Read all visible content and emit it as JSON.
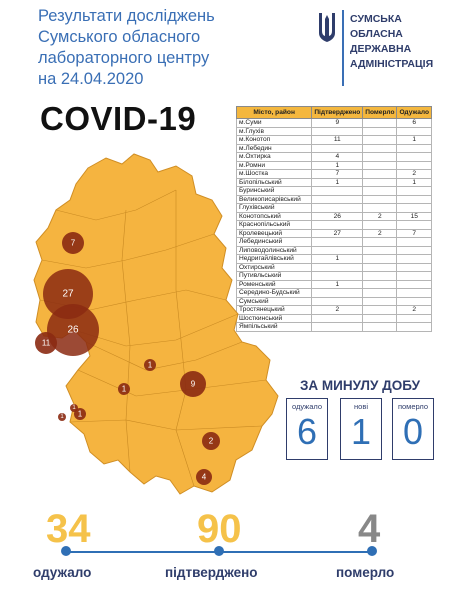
{
  "header": {
    "title_lines": [
      "Результати досліджень",
      "Сумського обласного",
      "лабораторного центру",
      "на 24.04.2020"
    ],
    "covid_label": "COVID-19"
  },
  "org": {
    "lines": [
      "СУМСЬКА",
      "ОБЛАСНА",
      "ДЕРЖАВНА",
      "АДМІНІСТРАЦІЯ"
    ]
  },
  "table": {
    "headers": [
      "Місто, район",
      "Підтверджено",
      "Померло",
      "Одужало"
    ],
    "rows": [
      [
        "м.Суми",
        "9",
        "",
        "6"
      ],
      [
        "м.Глухів",
        "",
        "",
        ""
      ],
      [
        "м.Конотоп",
        "11",
        "",
        "1"
      ],
      [
        "м.Лебедин",
        "",
        "",
        ""
      ],
      [
        "м.Охтирка",
        "4",
        "",
        ""
      ],
      [
        "м.Ромни",
        "1",
        "",
        ""
      ],
      [
        "м.Шостка",
        "7",
        "",
        "2"
      ],
      [
        "Білопільський",
        "1",
        "",
        "1"
      ],
      [
        "Буринський",
        "",
        "",
        ""
      ],
      [
        "Великописарівський",
        "",
        "",
        ""
      ],
      [
        "Глухівський",
        "",
        "",
        ""
      ],
      [
        "Конотопський",
        "26",
        "2",
        "15"
      ],
      [
        "Краснопільський",
        "",
        "",
        ""
      ],
      [
        "Кролевецький",
        "27",
        "2",
        "7"
      ],
      [
        "Лебединський",
        "",
        "",
        ""
      ],
      [
        "Липоводолинський",
        "",
        "",
        ""
      ],
      [
        "Недригайлівський",
        "1",
        "",
        ""
      ],
      [
        "Охтирський",
        "",
        "",
        ""
      ],
      [
        "Путивльський",
        "",
        "",
        ""
      ],
      [
        "Роменський",
        "1",
        "",
        ""
      ],
      [
        "Середино-Будський",
        "",
        "",
        ""
      ],
      [
        "Сумський",
        "",
        "",
        ""
      ],
      [
        "Тростянецький",
        "2",
        "",
        "2"
      ],
      [
        "Шосткинський",
        "",
        "",
        ""
      ],
      [
        "Ямпільський",
        "",
        "",
        ""
      ]
    ]
  },
  "map": {
    "markers": [
      {
        "label": "7"
      },
      {
        "label": "27"
      },
      {
        "label": "26"
      },
      {
        "label": "11"
      },
      {
        "label": "1"
      },
      {
        "label": "1"
      },
      {
        "label": "1"
      },
      {
        "label": "9"
      },
      {
        "label": "2"
      },
      {
        "label": "4"
      },
      {
        "label": "1"
      },
      {
        "label": "1"
      }
    ]
  },
  "daily": {
    "title": "ЗА МИНУЛУ ДОБУ",
    "boxes": [
      {
        "label": "одужало",
        "value": "6"
      },
      {
        "label": "нові",
        "value": "1"
      },
      {
        "label": "померло",
        "value": "0"
      }
    ]
  },
  "totals": {
    "recovered": "34",
    "confirmed": "90",
    "deaths": "4",
    "recovered_label": "одужало",
    "confirmed_label": "підтверджено",
    "deaths_label": "померло"
  },
  "colors": {
    "title_blue": "#3a6fb5",
    "dark_blue": "#2f3d6b",
    "map_fill": "#f5b440",
    "marker_fill": "#8b2a12",
    "recovered": "#f5c24a",
    "confirmed": "#f5c24a",
    "deaths": "#888888"
  },
  "icons": {
    "crest": "trident-icon"
  }
}
